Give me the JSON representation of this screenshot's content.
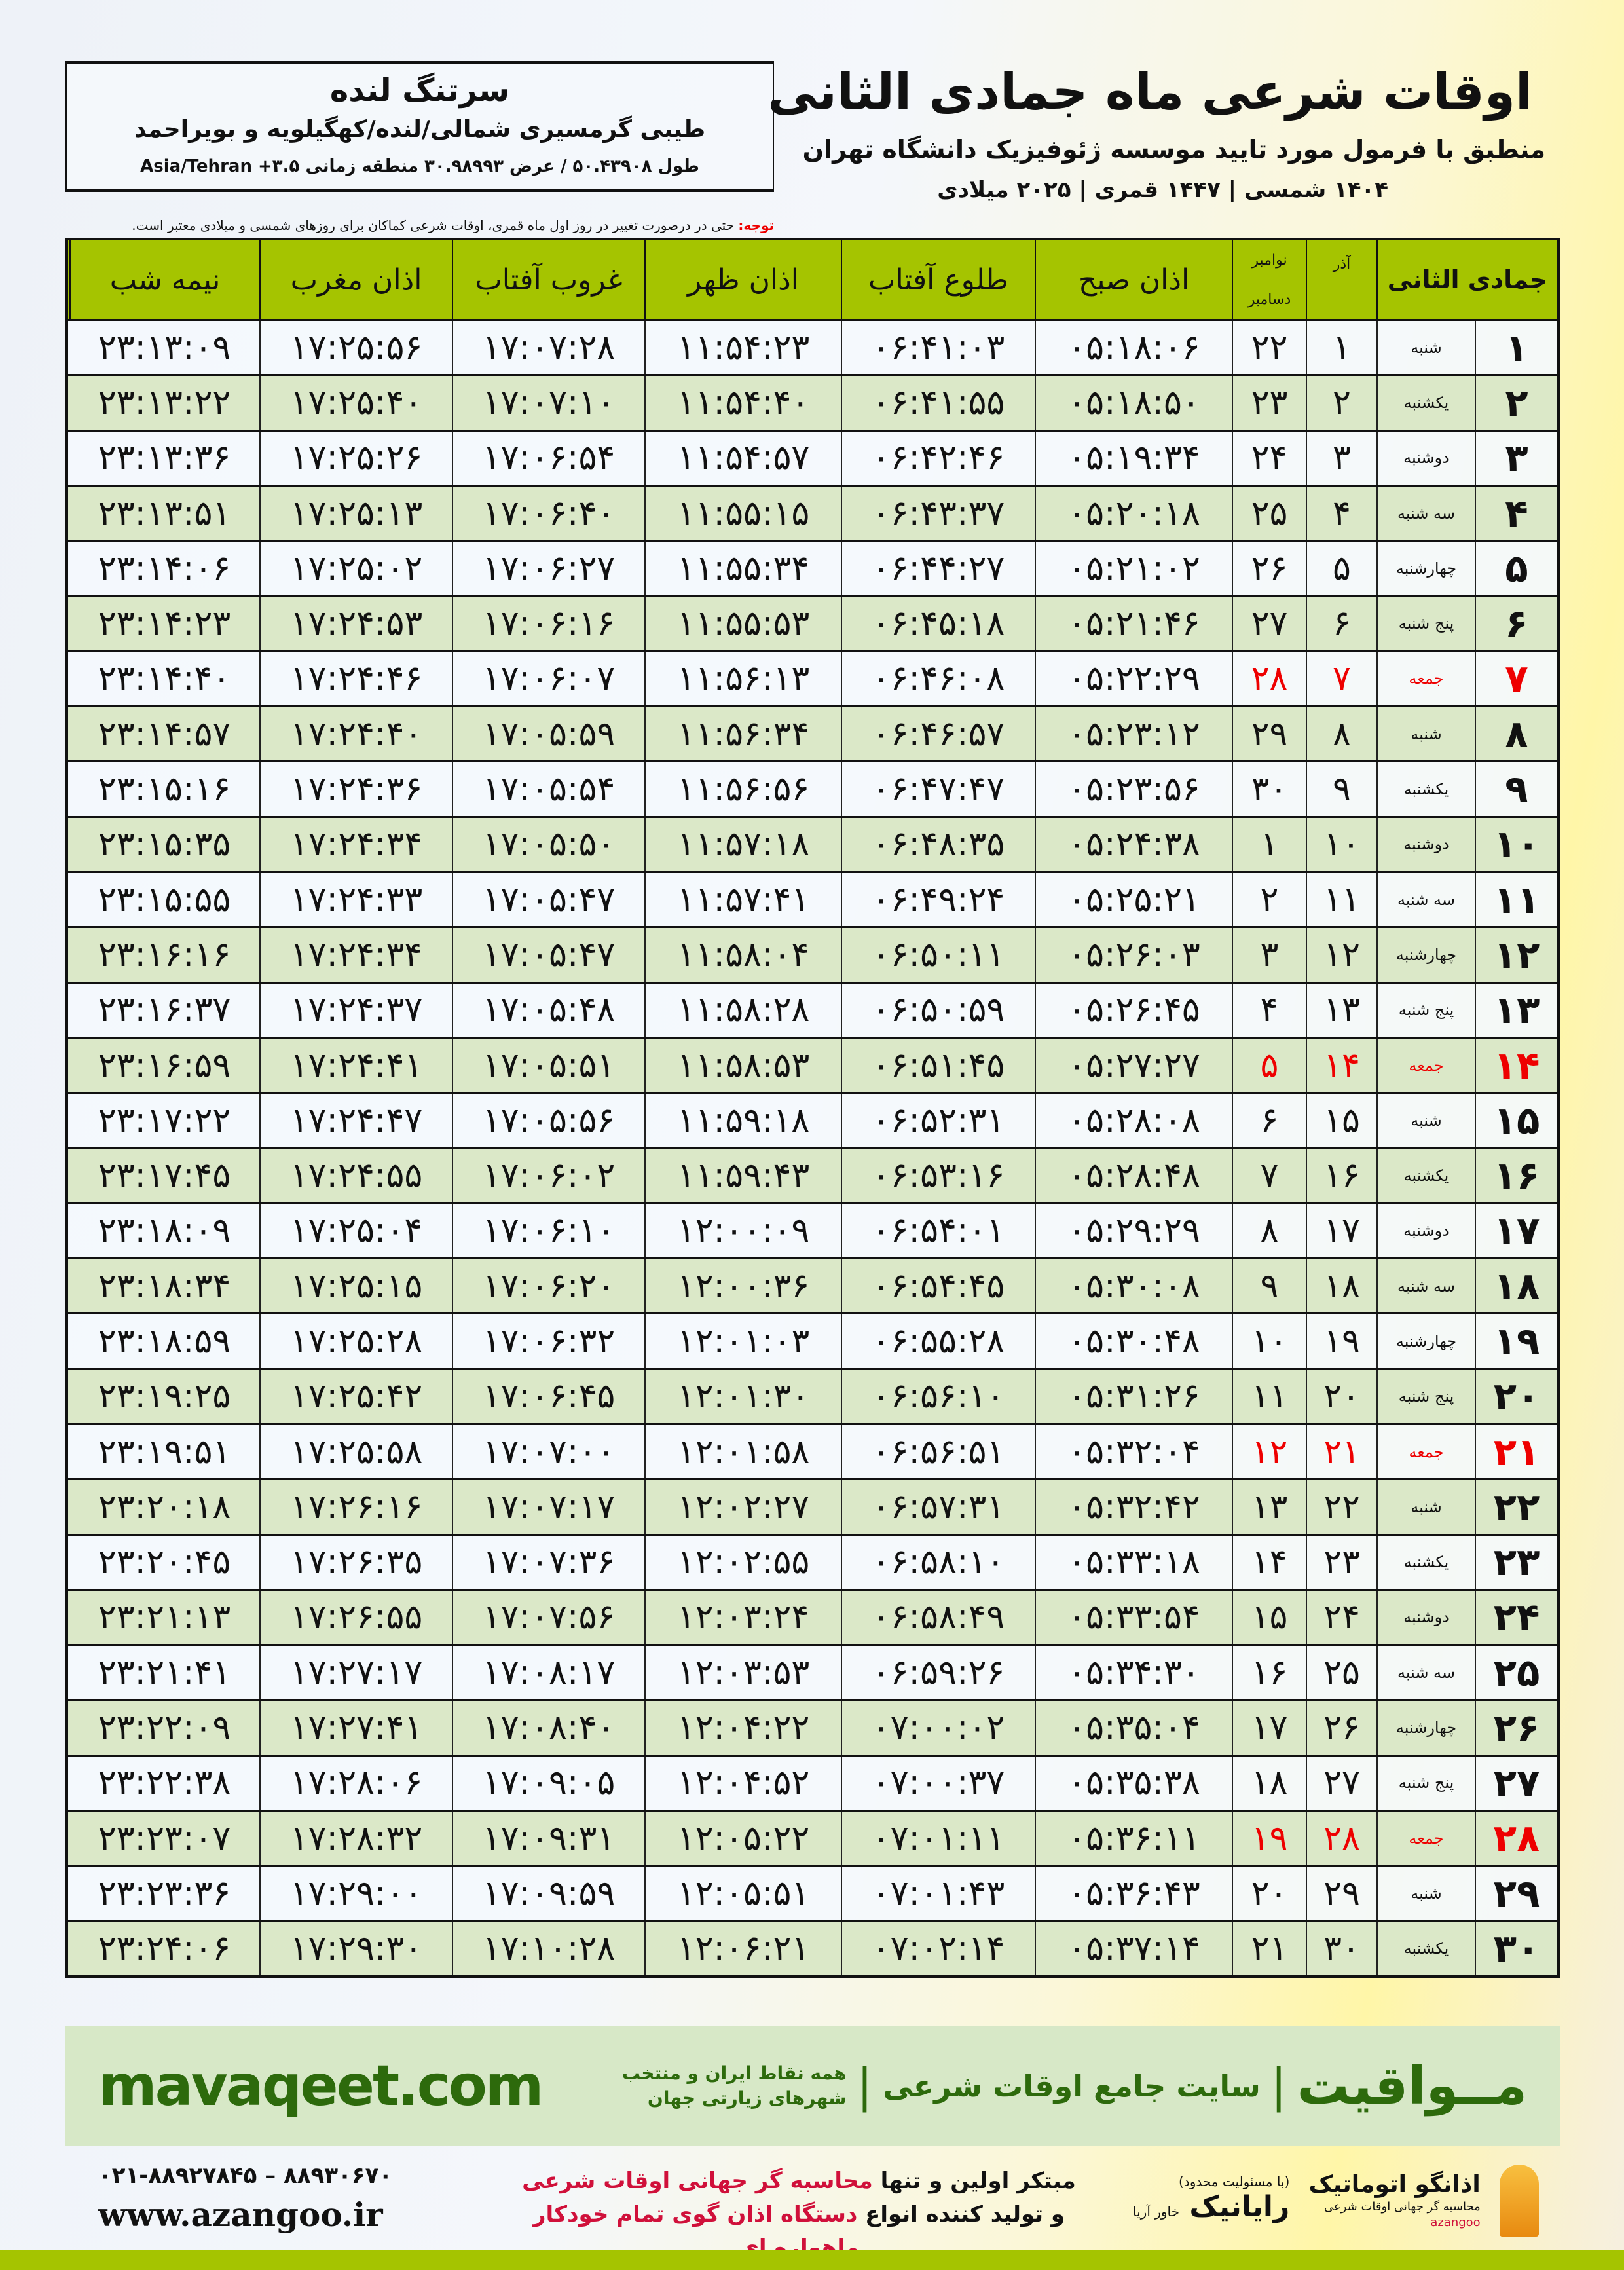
{
  "header": {
    "title": "اوقات شرعی ماه جمادی الثانی",
    "subtitle": "منطبق با فرمول مورد تایید موسسه ژئوفیزیک دانشگاه تهران",
    "years": "۱۴۰۴ شمسی | ۱۴۴۷ قمری | ۲۰۲۵ میلادی"
  },
  "location": {
    "city": "سرتنگ لنده",
    "region": "طیبی گرمسیری شمالی/لنده/کهگیلویه و بویراحمد",
    "coords": "طول ۵۰.۴۳۹۰۸ / عرض ۳۰.۹۸۹۹۳ منطقه زمانی Asia/Tehran +۳.۵"
  },
  "note": {
    "label": "توجه:",
    "text": " حتی در درصورت تغییر در روز اول ماه قمری، اوقات شرعی کماکان برای روزهای شمسی و میلادی معتبر است."
  },
  "table": {
    "columns": {
      "hijri": "جمادی الثانی",
      "azar": "آذر",
      "greg_top": "نوامبر",
      "greg_bottom": "دسامبر",
      "fajr": "اذان صبح",
      "sunrise": "طلوع آفتاب",
      "dhuhr": "اذان ظهر",
      "sunset": "غروب آفتاب",
      "maghrib": "اذان مغرب",
      "midnight": "نیمه شب"
    },
    "holiday_color": "#e00000",
    "header_color": "#a5c400",
    "rows": [
      {
        "h": "۱",
        "w": "شنبه",
        "a": "۱",
        "g": "۲۲",
        "t": [
          "۰۵:۱۸:۰۶",
          "۰۶:۴۱:۰۳",
          "۱۱:۵۴:۲۳",
          "۱۷:۰۷:۲۸",
          "۱۷:۲۵:۵۶",
          "۲۳:۱۳:۰۹"
        ]
      },
      {
        "h": "۲",
        "w": "یکشنبه",
        "a": "۲",
        "g": "۲۳",
        "t": [
          "۰۵:۱۸:۵۰",
          "۰۶:۴۱:۵۵",
          "۱۱:۵۴:۴۰",
          "۱۷:۰۷:۱۰",
          "۱۷:۲۵:۴۰",
          "۲۳:۱۳:۲۲"
        ]
      },
      {
        "h": "۳",
        "w": "دوشنبه",
        "a": "۳",
        "g": "۲۴",
        "t": [
          "۰۵:۱۹:۳۴",
          "۰۶:۴۲:۴۶",
          "۱۱:۵۴:۵۷",
          "۱۷:۰۶:۵۴",
          "۱۷:۲۵:۲۶",
          "۲۳:۱۳:۳۶"
        ]
      },
      {
        "h": "۴",
        "w": "سه شنبه",
        "a": "۴",
        "g": "۲۵",
        "t": [
          "۰۵:۲۰:۱۸",
          "۰۶:۴۳:۳۷",
          "۱۱:۵۵:۱۵",
          "۱۷:۰۶:۴۰",
          "۱۷:۲۵:۱۳",
          "۲۳:۱۳:۵۱"
        ]
      },
      {
        "h": "۵",
        "w": "چهارشنبه",
        "a": "۵",
        "g": "۲۶",
        "t": [
          "۰۵:۲۱:۰۲",
          "۰۶:۴۴:۲۷",
          "۱۱:۵۵:۳۴",
          "۱۷:۰۶:۲۷",
          "۱۷:۲۵:۰۲",
          "۲۳:۱۴:۰۶"
        ]
      },
      {
        "h": "۶",
        "w": "پنج شنبه",
        "a": "۶",
        "g": "۲۷",
        "t": [
          "۰۵:۲۱:۴۶",
          "۰۶:۴۵:۱۸",
          "۱۱:۵۵:۵۳",
          "۱۷:۰۶:۱۶",
          "۱۷:۲۴:۵۳",
          "۲۳:۱۴:۲۳"
        ]
      },
      {
        "h": "۷",
        "w": "جمعه",
        "a": "۷",
        "g": "۲۸",
        "t": [
          "۰۵:۲۲:۲۹",
          "۰۶:۴۶:۰۸",
          "۱۱:۵۶:۱۳",
          "۱۷:۰۶:۰۷",
          "۱۷:۲۴:۴۶",
          "۲۳:۱۴:۴۰"
        ],
        "holiday": true
      },
      {
        "h": "۸",
        "w": "شنبه",
        "a": "۸",
        "g": "۲۹",
        "t": [
          "۰۵:۲۳:۱۲",
          "۰۶:۴۶:۵۷",
          "۱۱:۵۶:۳۴",
          "۱۷:۰۵:۵۹",
          "۱۷:۲۴:۴۰",
          "۲۳:۱۴:۵۷"
        ]
      },
      {
        "h": "۹",
        "w": "یکشنبه",
        "a": "۹",
        "g": "۳۰",
        "t": [
          "۰۵:۲۳:۵۶",
          "۰۶:۴۷:۴۷",
          "۱۱:۵۶:۵۶",
          "۱۷:۰۵:۵۴",
          "۱۷:۲۴:۳۶",
          "۲۳:۱۵:۱۶"
        ]
      },
      {
        "h": "۱۰",
        "w": "دوشنبه",
        "a": "۱۰",
        "g": "۱",
        "t": [
          "۰۵:۲۴:۳۸",
          "۰۶:۴۸:۳۵",
          "۱۱:۵۷:۱۸",
          "۱۷:۰۵:۵۰",
          "۱۷:۲۴:۳۴",
          "۲۳:۱۵:۳۵"
        ]
      },
      {
        "h": "۱۱",
        "w": "سه شنبه",
        "a": "۱۱",
        "g": "۲",
        "t": [
          "۰۵:۲۵:۲۱",
          "۰۶:۴۹:۲۴",
          "۱۱:۵۷:۴۱",
          "۱۷:۰۵:۴۷",
          "۱۷:۲۴:۳۳",
          "۲۳:۱۵:۵۵"
        ]
      },
      {
        "h": "۱۲",
        "w": "چهارشنبه",
        "a": "۱۲",
        "g": "۳",
        "t": [
          "۰۵:۲۶:۰۳",
          "۰۶:۵۰:۱۱",
          "۱۱:۵۸:۰۴",
          "۱۷:۰۵:۴۷",
          "۱۷:۲۴:۳۴",
          "۲۳:۱۶:۱۶"
        ]
      },
      {
        "h": "۱۳",
        "w": "پنج شنبه",
        "a": "۱۳",
        "g": "۴",
        "t": [
          "۰۵:۲۶:۴۵",
          "۰۶:۵۰:۵۹",
          "۱۱:۵۸:۲۸",
          "۱۷:۰۵:۴۸",
          "۱۷:۲۴:۳۷",
          "۲۳:۱۶:۳۷"
        ]
      },
      {
        "h": "۱۴",
        "w": "جمعه",
        "a": "۱۴",
        "g": "۵",
        "t": [
          "۰۵:۲۷:۲۷",
          "۰۶:۵۱:۴۵",
          "۱۱:۵۸:۵۳",
          "۱۷:۰۵:۵۱",
          "۱۷:۲۴:۴۱",
          "۲۳:۱۶:۵۹"
        ],
        "holiday": true
      },
      {
        "h": "۱۵",
        "w": "شنبه",
        "a": "۱۵",
        "g": "۶",
        "t": [
          "۰۵:۲۸:۰۸",
          "۰۶:۵۲:۳۱",
          "۱۱:۵۹:۱۸",
          "۱۷:۰۵:۵۶",
          "۱۷:۲۴:۴۷",
          "۲۳:۱۷:۲۲"
        ]
      },
      {
        "h": "۱۶",
        "w": "یکشنبه",
        "a": "۱۶",
        "g": "۷",
        "t": [
          "۰۵:۲۸:۴۸",
          "۰۶:۵۳:۱۶",
          "۱۱:۵۹:۴۳",
          "۱۷:۰۶:۰۲",
          "۱۷:۲۴:۵۵",
          "۲۳:۱۷:۴۵"
        ]
      },
      {
        "h": "۱۷",
        "w": "دوشنبه",
        "a": "۱۷",
        "g": "۸",
        "t": [
          "۰۵:۲۹:۲۹",
          "۰۶:۵۴:۰۱",
          "۱۲:۰۰:۰۹",
          "۱۷:۰۶:۱۰",
          "۱۷:۲۵:۰۴",
          "۲۳:۱۸:۰۹"
        ]
      },
      {
        "h": "۱۸",
        "w": "سه شنبه",
        "a": "۱۸",
        "g": "۹",
        "t": [
          "۰۵:۳۰:۰۸",
          "۰۶:۵۴:۴۵",
          "۱۲:۰۰:۳۶",
          "۱۷:۰۶:۲۰",
          "۱۷:۲۵:۱۵",
          "۲۳:۱۸:۳۴"
        ]
      },
      {
        "h": "۱۹",
        "w": "چهارشنبه",
        "a": "۱۹",
        "g": "۱۰",
        "t": [
          "۰۵:۳۰:۴۸",
          "۰۶:۵۵:۲۸",
          "۱۲:۰۱:۰۳",
          "۱۷:۰۶:۳۲",
          "۱۷:۲۵:۲۸",
          "۲۳:۱۸:۵۹"
        ]
      },
      {
        "h": "۲۰",
        "w": "پنج شنبه",
        "a": "۲۰",
        "g": "۱۱",
        "t": [
          "۰۵:۳۱:۲۶",
          "۰۶:۵۶:۱۰",
          "۱۲:۰۱:۳۰",
          "۱۷:۰۶:۴۵",
          "۱۷:۲۵:۴۲",
          "۲۳:۱۹:۲۵"
        ]
      },
      {
        "h": "۲۱",
        "w": "جمعه",
        "a": "۲۱",
        "g": "۱۲",
        "t": [
          "۰۵:۳۲:۰۴",
          "۰۶:۵۶:۵۱",
          "۱۲:۰۱:۵۸",
          "۱۷:۰۷:۰۰",
          "۱۷:۲۵:۵۸",
          "۲۳:۱۹:۵۱"
        ],
        "holiday": true
      },
      {
        "h": "۲۲",
        "w": "شنبه",
        "a": "۲۲",
        "g": "۱۳",
        "t": [
          "۰۵:۳۲:۴۲",
          "۰۶:۵۷:۳۱",
          "۱۲:۰۲:۲۷",
          "۱۷:۰۷:۱۷",
          "۱۷:۲۶:۱۶",
          "۲۳:۲۰:۱۸"
        ]
      },
      {
        "h": "۲۳",
        "w": "یکشنبه",
        "a": "۲۳",
        "g": "۱۴",
        "t": [
          "۰۵:۳۳:۱۸",
          "۰۶:۵۸:۱۰",
          "۱۲:۰۲:۵۵",
          "۱۷:۰۷:۳۶",
          "۱۷:۲۶:۳۵",
          "۲۳:۲۰:۴۵"
        ]
      },
      {
        "h": "۲۴",
        "w": "دوشنبه",
        "a": "۲۴",
        "g": "۱۵",
        "t": [
          "۰۵:۳۳:۵۴",
          "۰۶:۵۸:۴۹",
          "۱۲:۰۳:۲۴",
          "۱۷:۰۷:۵۶",
          "۱۷:۲۶:۵۵",
          "۲۳:۲۱:۱۳"
        ]
      },
      {
        "h": "۲۵",
        "w": "سه شنبه",
        "a": "۲۵",
        "g": "۱۶",
        "t": [
          "۰۵:۳۴:۳۰",
          "۰۶:۵۹:۲۶",
          "۱۲:۰۳:۵۳",
          "۱۷:۰۸:۱۷",
          "۱۷:۲۷:۱۷",
          "۲۳:۲۱:۴۱"
        ]
      },
      {
        "h": "۲۶",
        "w": "چهارشنبه",
        "a": "۲۶",
        "g": "۱۷",
        "t": [
          "۰۵:۳۵:۰۴",
          "۰۷:۰۰:۰۲",
          "۱۲:۰۴:۲۲",
          "۱۷:۰۸:۴۰",
          "۱۷:۲۷:۴۱",
          "۲۳:۲۲:۰۹"
        ]
      },
      {
        "h": "۲۷",
        "w": "پنج شنبه",
        "a": "۲۷",
        "g": "۱۸",
        "t": [
          "۰۵:۳۵:۳۸",
          "۰۷:۰۰:۳۷",
          "۱۲:۰۴:۵۲",
          "۱۷:۰۹:۰۵",
          "۱۷:۲۸:۰۶",
          "۲۳:۲۲:۳۸"
        ]
      },
      {
        "h": "۲۸",
        "w": "جمعه",
        "a": "۲۸",
        "g": "۱۹",
        "t": [
          "۰۵:۳۶:۱۱",
          "۰۷:۰۱:۱۱",
          "۱۲:۰۵:۲۲",
          "۱۷:۰۹:۳۱",
          "۱۷:۲۸:۳۲",
          "۲۳:۲۳:۰۷"
        ],
        "holiday": true
      },
      {
        "h": "۲۹",
        "w": "شنبه",
        "a": "۲۹",
        "g": "۲۰",
        "t": [
          "۰۵:۳۶:۴۳",
          "۰۷:۰۱:۴۳",
          "۱۲:۰۵:۵۱",
          "۱۷:۰۹:۵۹",
          "۱۷:۲۹:۰۰",
          "۲۳:۲۳:۳۶"
        ]
      },
      {
        "h": "۳۰",
        "w": "یکشنبه",
        "a": "۳۰",
        "g": "۲۱",
        "t": [
          "۰۵:۳۷:۱۴",
          "۰۷:۰۲:۱۴",
          "۱۲:۰۶:۲۱",
          "۱۷:۱۰:۲۸",
          "۱۷:۲۹:۳۰",
          "۲۳:۲۴:۰۶"
        ]
      }
    ]
  },
  "footer": {
    "site": "mavaqeet.com",
    "brand": "مــواقیت",
    "separator": "|",
    "slogan": "سایت جامع اوقات شرعی",
    "sub": "همه نقاط ایران و منتخب شهرهای زیارتی جهان"
  },
  "contact": {
    "phone": "۰۲۱-۸۸۹۲۷۸۴۵ – ۸۸۹۳۰۶۷۰",
    "web": "www.azangoo.ir"
  },
  "ad": {
    "l1a": "مبتکر اولین و تنها ",
    "l1b": "محاسبه گر جهانی اوقات شرعی",
    "l2a": "و تولید کننده انواع ",
    "l2b": "دستگاه اذان گوی تمام خودکار ماهواره ای"
  },
  "logos": {
    "rayanik": "رایانیک",
    "rayanik_sub": "خاور آریا",
    "rayanik_top": "(با مسئولیت محدود)",
    "azangoo": "اذانگو اتوماتیک",
    "azangoo_sub": "محاسبه گر جهانی اوقات شرعی",
    "azangoo_en": "azangoo"
  }
}
